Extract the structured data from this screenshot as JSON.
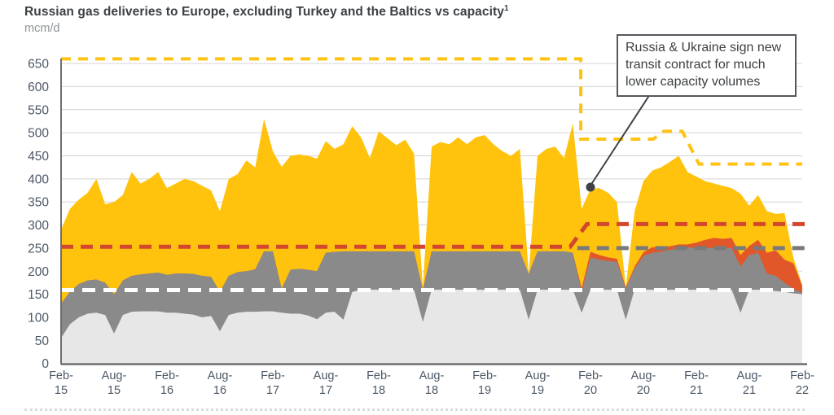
{
  "title": {
    "text": "Russian gas deliveries to Europe, excluding Turkey and the Baltics vs capacity",
    "superscript": "1"
  },
  "subtitle": "mcm/d",
  "annotation": {
    "lines": [
      "Russia & Ukraine sign new",
      "transit contract for much",
      "lower capacity volumes"
    ]
  },
  "colors": {
    "yellow_area": "#FFC30E",
    "orange_area": "#E1572A",
    "dark_gray_area": "#8A8A8A",
    "light_gray_area": "#E7E7E7",
    "yellow_capacity_line": "#FFC313",
    "red_capacity_line": "#D2472E",
    "gray_capacity_line": "#7A7A7A",
    "white_capacity_line": "#FFFFFF",
    "gridline": "#D4D4D4",
    "axis": "#6E6E6E",
    "tick_text": "#4C5866",
    "annotation_marker": "#3F4347"
  },
  "chart_data": {
    "type": "area",
    "stacked": true,
    "title": "Russian gas deliveries to Europe, excluding Turkey and the Baltics vs capacity",
    "ylabel": "mcm/d",
    "ylim": [
      0,
      650
    ],
    "y_ticks": [
      0,
      50,
      100,
      150,
      200,
      250,
      300,
      350,
      400,
      450,
      500,
      550,
      600,
      650
    ],
    "x_start": "Feb-2015",
    "x_end": "Feb-2022",
    "x_interval": "monthly",
    "grid": true,
    "legend": false,
    "x_tick_labels": [
      [
        "Feb-",
        "15"
      ],
      [
        "Aug-",
        "15"
      ],
      [
        "Feb-",
        "16"
      ],
      [
        "Aug-",
        "16"
      ],
      [
        "Feb-",
        "17"
      ],
      [
        "Aug-",
        "17"
      ],
      [
        "Feb-",
        "18"
      ],
      [
        "Aug-",
        "18"
      ],
      [
        "Feb-",
        "19"
      ],
      [
        "Aug-",
        "19"
      ],
      [
        "Feb-",
        "20"
      ],
      [
        "Aug-",
        "20"
      ],
      [
        "Feb-",
        "21"
      ],
      [
        "Aug-",
        "21"
      ],
      [
        "Feb-",
        "22"
      ]
    ],
    "series": [
      {
        "name": "light-gray-area",
        "color": "#E7E7E7",
        "values": [
          55,
          85,
          100,
          108,
          110,
          105,
          65,
          105,
          112,
          113,
          113,
          113,
          110,
          110,
          108,
          106,
          100,
          103,
          70,
          105,
          110,
          112,
          112,
          113,
          113,
          110,
          108,
          108,
          104,
          96,
          110,
          112,
          95,
          155,
          160,
          160,
          160,
          160,
          160,
          160,
          160,
          90,
          160,
          160,
          160,
          160,
          160,
          160,
          160,
          160,
          160,
          160,
          160,
          95,
          160,
          160,
          160,
          160,
          160,
          110,
          160,
          160,
          160,
          160,
          95,
          160,
          160,
          160,
          160,
          160,
          160,
          160,
          160,
          160,
          160,
          160,
          160,
          110,
          160,
          160,
          158,
          157,
          155,
          152,
          150
        ]
      },
      {
        "name": "dark-gray-area",
        "color": "#8A8A8A",
        "values": [
          75,
          70,
          72,
          72,
          72,
          70,
          85,
          75,
          78,
          80,
          82,
          84,
          82,
          85,
          87,
          88,
          90,
          85,
          85,
          85,
          88,
          88,
          92,
          130,
          130,
          52,
          95,
          97,
          99,
          104,
          130,
          130,
          148,
          88,
          83,
          83,
          83,
          83,
          83,
          83,
          83,
          70,
          83,
          83,
          83,
          83,
          83,
          83,
          83,
          83,
          83,
          83,
          83,
          99,
          83,
          83,
          83,
          83,
          80,
          45,
          70,
          65,
          62,
          60,
          67,
          45,
          73,
          80,
          82,
          86,
          90,
          92,
          90,
          90,
          90,
          90,
          90,
          100,
          75,
          80,
          37,
          33,
          20,
          10,
          3
        ]
      },
      {
        "name": "orange-area",
        "color": "#E1572A",
        "values": [
          0,
          0,
          0,
          0,
          0,
          0,
          0,
          0,
          0,
          0,
          0,
          0,
          0,
          0,
          0,
          0,
          0,
          0,
          0,
          0,
          0,
          0,
          0,
          0,
          0,
          0,
          0,
          0,
          0,
          0,
          0,
          0,
          0,
          0,
          0,
          0,
          0,
          0,
          0,
          0,
          0,
          0,
          0,
          0,
          0,
          0,
          0,
          0,
          0,
          0,
          0,
          0,
          0,
          0,
          0,
          0,
          0,
          0,
          0,
          8,
          12,
          10,
          8,
          7,
          3,
          5,
          8,
          12,
          10,
          8,
          8,
          6,
          12,
          18,
          22,
          20,
          22,
          25,
          20,
          28,
          45,
          55,
          50,
          55,
          15
        ]
      },
      {
        "name": "yellow-area",
        "color": "#FFC30E",
        "values": [
          160,
          180,
          183,
          190,
          218,
          170,
          200,
          185,
          225,
          197,
          205,
          218,
          188,
          195,
          205,
          201,
          195,
          187,
          175,
          210,
          212,
          240,
          221,
          287,
          217,
          264,
          247,
          248,
          247,
          244,
          242,
          223,
          232,
          271,
          247,
          202,
          260,
          245,
          230,
          242,
          212,
          5,
          227,
          237,
          232,
          247,
          232,
          247,
          252,
          232,
          217,
          207,
          222,
          0,
          207,
          222,
          227,
          202,
          280,
          172,
          136,
          145,
          140,
          123,
          0,
          120,
          154,
          166,
          173,
          183,
          192,
          157,
          143,
          127,
          118,
          115,
          108,
          133,
          87,
          97,
          90,
          79,
          101,
          12,
          2
        ]
      }
    ],
    "capacity_lines": [
      {
        "name": "white-dashed-capacity-line",
        "color": "#FFFFFF",
        "width": 5,
        "dash": "16 10",
        "points": [
          [
            0,
            159
          ],
          [
            84,
            159
          ]
        ]
      },
      {
        "name": "gray-dashed-capacity-line",
        "color": "#7A7A7A",
        "width": 5,
        "dash": "15 9",
        "points": [
          [
            58.5,
            250
          ],
          [
            84.3,
            250
          ]
        ]
      },
      {
        "name": "red-dashed-capacity-line",
        "color": "#D2472E",
        "width": 5,
        "dash": "15 9",
        "points": [
          [
            0,
            253
          ],
          [
            57.7,
            253
          ],
          [
            59.6,
            302
          ],
          [
            84.8,
            302
          ]
        ]
      },
      {
        "name": "yellow-dashed-capacity-line",
        "color": "#FFC313",
        "width": 4,
        "dash": "12 9",
        "points": [
          [
            0,
            660
          ],
          [
            58.9,
            660
          ],
          [
            58.9,
            486
          ],
          [
            67.1,
            486
          ],
          [
            68.3,
            503
          ],
          [
            70.4,
            503
          ],
          [
            72.3,
            432
          ],
          [
            84,
            432
          ]
        ]
      }
    ]
  }
}
